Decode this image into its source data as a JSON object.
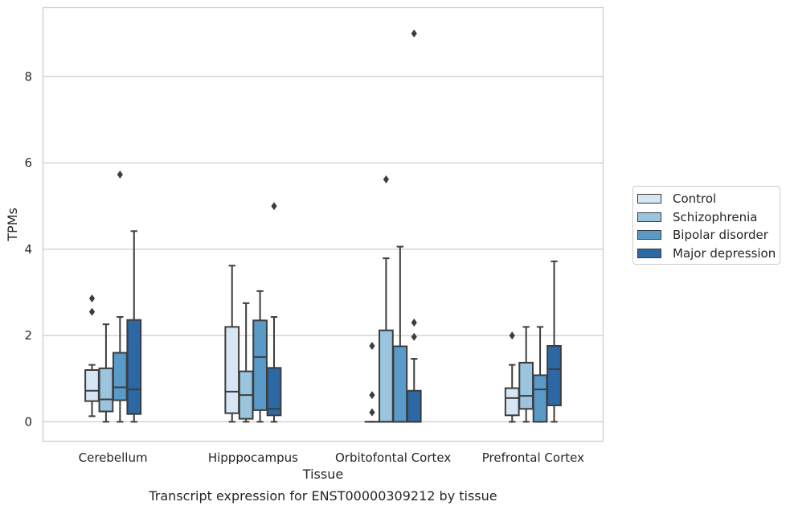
{
  "chart_data": {
    "type": "box",
    "title": "Transcript expression for ENST00000309212 by tissue",
    "xlabel": "Tissue",
    "ylabel": "TPMs",
    "ylim": [
      -0.45,
      9.6
    ],
    "yticks": [
      0,
      2,
      4,
      6,
      8
    ],
    "categories": [
      "Cerebellum",
      "Hipppocampus",
      "Orbitofontal Cortex",
      "Prefrontal Cortex"
    ],
    "grid": "horizontal",
    "legend_position": "right",
    "series": [
      {
        "name": "Control",
        "color": "#d6e6f4",
        "boxes": [
          {
            "whislo": 0.13,
            "q1": 0.48,
            "med": 0.72,
            "q3": 1.2,
            "whishi": 1.32,
            "fliers": [
              2.55,
              2.86
            ]
          },
          {
            "whislo": 0.0,
            "q1": 0.2,
            "med": 0.7,
            "q3": 2.2,
            "whishi": 3.62,
            "fliers": []
          },
          {
            "whislo": 0.0,
            "q1": 0.0,
            "med": 0.0,
            "q3": 0.0,
            "whishi": 0.0,
            "fliers": [
              0.22,
              0.62,
              1.76
            ]
          },
          {
            "whislo": 0.0,
            "q1": 0.15,
            "med": 0.55,
            "q3": 0.78,
            "whishi": 1.32,
            "fliers": [
              2.0
            ]
          }
        ]
      },
      {
        "name": "Schizophrenia",
        "color": "#9bc4de",
        "boxes": [
          {
            "whislo": 0.0,
            "q1": 0.24,
            "med": 0.52,
            "q3": 1.24,
            "whishi": 2.26,
            "fliers": []
          },
          {
            "whislo": 0.0,
            "q1": 0.07,
            "med": 0.62,
            "q3": 1.17,
            "whishi": 2.75,
            "fliers": []
          },
          {
            "whislo": 0.0,
            "q1": 0.0,
            "med": 0.0,
            "q3": 2.12,
            "whishi": 3.79,
            "fliers": [
              5.62
            ]
          },
          {
            "whislo": 0.0,
            "q1": 0.3,
            "med": 0.6,
            "q3": 1.37,
            "whishi": 2.2,
            "fliers": []
          }
        ]
      },
      {
        "name": "Bipolar disorder",
        "color": "#5a9ac9",
        "boxes": [
          {
            "whislo": 0.0,
            "q1": 0.5,
            "med": 0.8,
            "q3": 1.6,
            "whishi": 2.43,
            "fliers": [
              5.73
            ]
          },
          {
            "whislo": 0.0,
            "q1": 0.27,
            "med": 1.5,
            "q3": 2.35,
            "whishi": 3.03,
            "fliers": []
          },
          {
            "whislo": 0.0,
            "q1": 0.0,
            "med": 0.0,
            "q3": 1.75,
            "whishi": 4.06,
            "fliers": []
          },
          {
            "whislo": 0.0,
            "q1": 0.0,
            "med": 0.75,
            "q3": 1.08,
            "whishi": 2.2,
            "fliers": []
          }
        ]
      },
      {
        "name": "Major depression",
        "color": "#2c68a4",
        "boxes": [
          {
            "whislo": 0.0,
            "q1": 0.18,
            "med": 0.75,
            "q3": 2.36,
            "whishi": 4.42,
            "fliers": []
          },
          {
            "whislo": 0.0,
            "q1": 0.15,
            "med": 0.3,
            "q3": 1.25,
            "whishi": 2.43,
            "fliers": [
              5.0
            ]
          },
          {
            "whislo": 0.0,
            "q1": 0.0,
            "med": 0.0,
            "q3": 0.72,
            "whishi": 1.46,
            "fliers": [
              1.97,
              2.3,
              9.0
            ]
          },
          {
            "whislo": 0.0,
            "q1": 0.38,
            "med": 1.22,
            "q3": 1.76,
            "whishi": 3.72,
            "fliers": []
          }
        ]
      }
    ]
  }
}
